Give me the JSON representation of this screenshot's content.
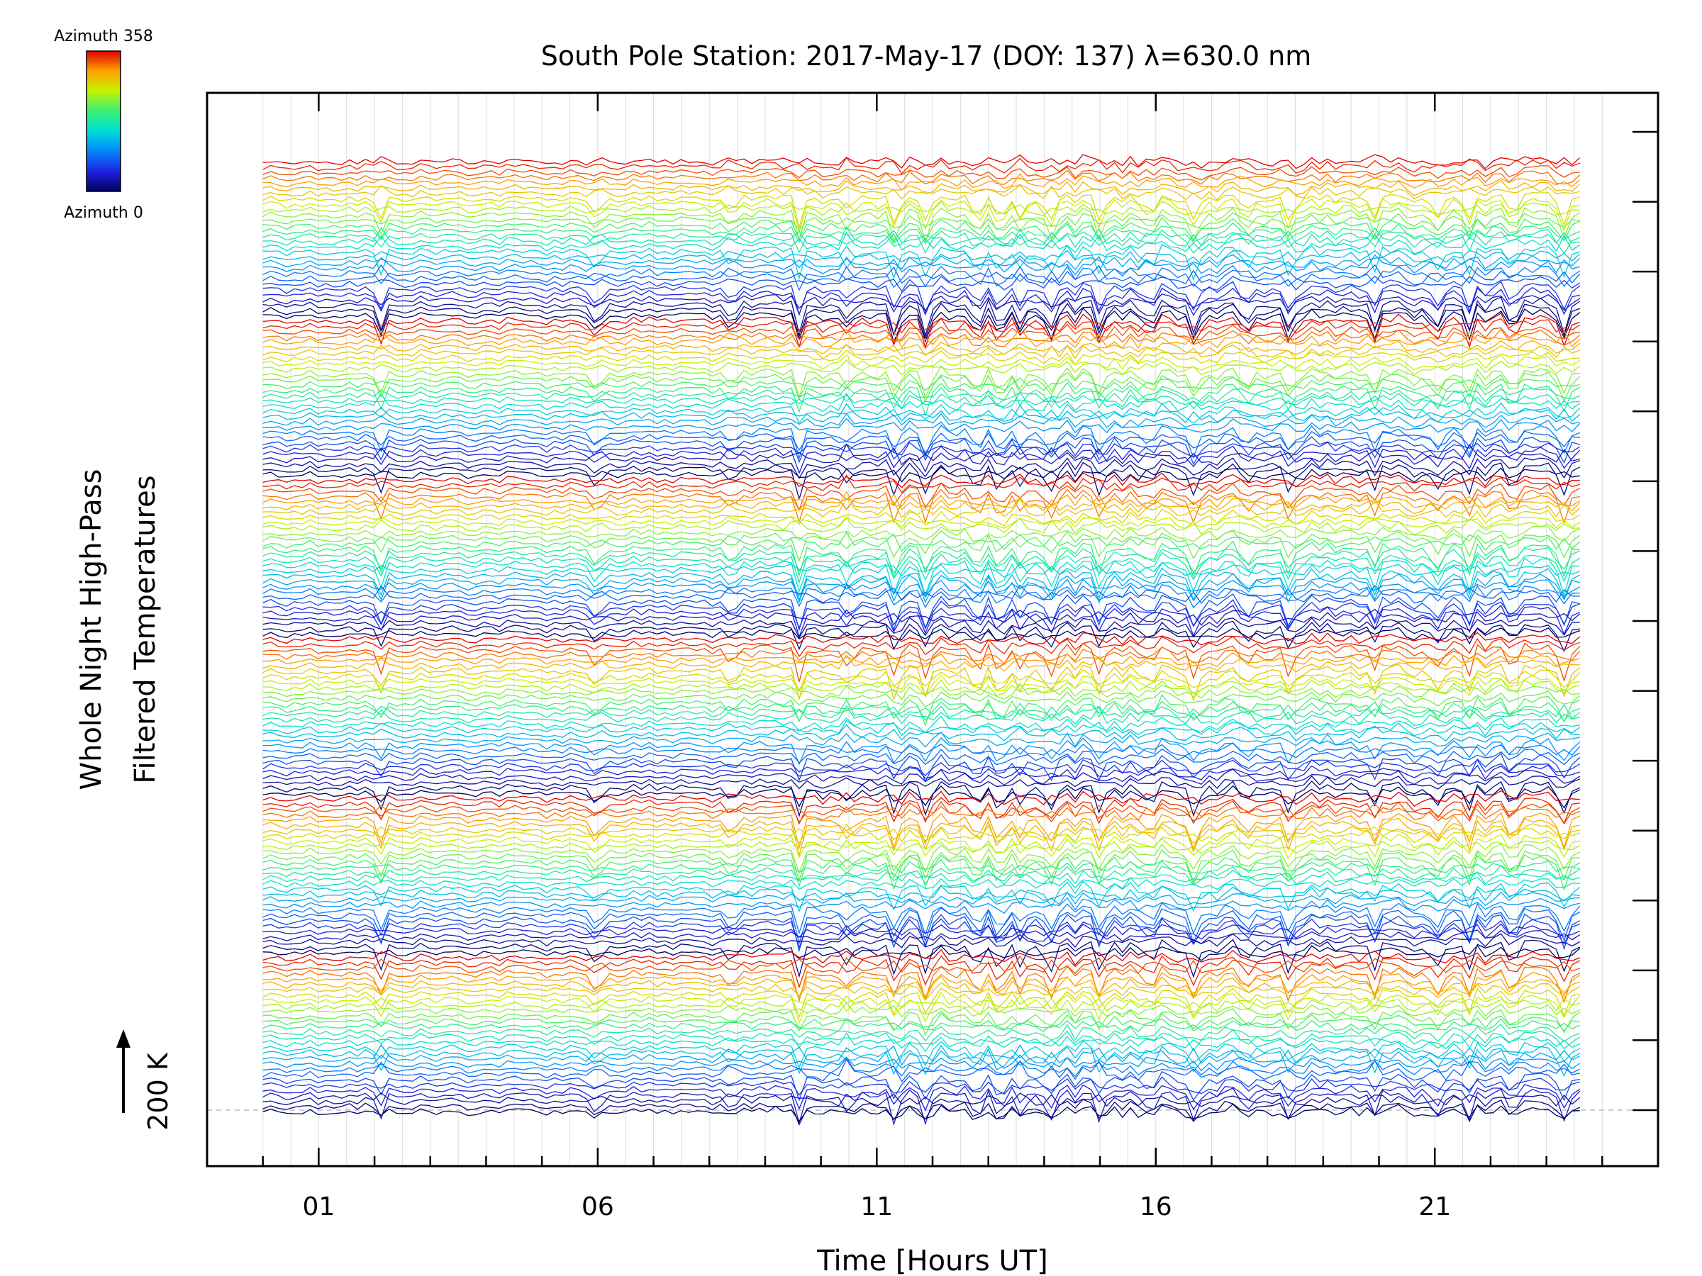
{
  "chart_data": {
    "type": "line",
    "title": "South Pole Station: 2017-May-17 (DOY: 137) λ=630.0 nm",
    "xlabel": "Time [Hours UT]",
    "ylabel_line1": "Whole Night High-Pass",
    "ylabel_line2": "Filtered Temperatures",
    "x_range": [
      -1,
      25
    ],
    "x_ticks": [
      1,
      6,
      11,
      16,
      21
    ],
    "x_tick_labels": [
      "01",
      "06",
      "11",
      "16",
      "21"
    ],
    "data_x_range": [
      0.0,
      23.6
    ],
    "y_scale_bar": {
      "label": "200 K",
      "value": 200
    },
    "y_right_tick_count": 15,
    "series_count": 180,
    "series_groups": 6,
    "series_per_group": 30,
    "colorbar": {
      "top_label": "Azimuth 358",
      "bottom_label": "Azimuth 0",
      "min": 0,
      "max": 358,
      "colormap": "rainbow (blue → cyan → green → yellow → red)"
    },
    "event_times_hours": [
      2.1,
      6.0,
      8.4,
      9.6,
      10.5,
      11.3,
      11.9,
      12.8,
      13.2,
      13.6,
      14.1,
      15.0,
      15.9,
      16.7,
      17.6,
      18.4,
      19.9,
      21.0,
      21.6,
      22.4,
      23.3
    ],
    "colors": {
      "gridline": "#dddddd",
      "baseline": "#bbbbbb",
      "axis": "#000000"
    }
  }
}
